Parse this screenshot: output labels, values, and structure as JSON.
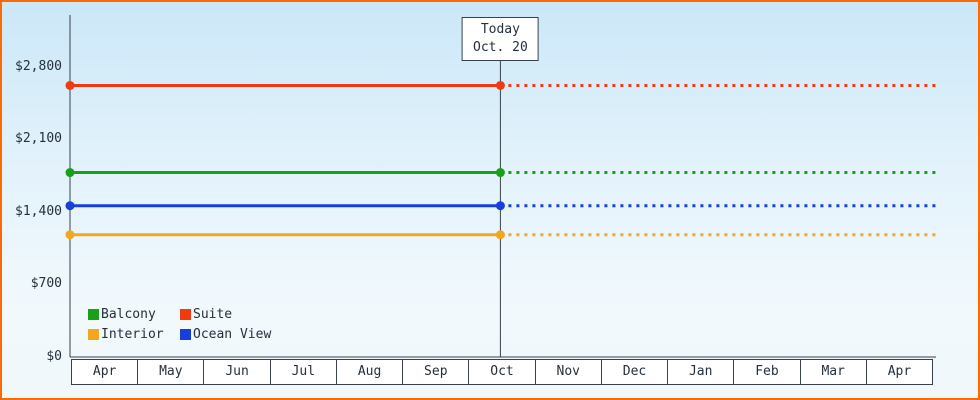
{
  "chart_data": {
    "type": "line",
    "title": "",
    "description": "Cruise cabin price history chart: flat price lines per cabin category, solid before today marker, dotted projection after",
    "y_axis": {
      "ticks": [
        {
          "label": "$0",
          "value": 0
        },
        {
          "label": "$700",
          "value": 700
        },
        {
          "label": "$1,400",
          "value": 1400
        },
        {
          "label": "$2,100",
          "value": 2100
        },
        {
          "label": "$2,800",
          "value": 2800
        }
      ],
      "max": 3300
    },
    "x_axis": {
      "categories": [
        "Apr",
        "May",
        "Jun",
        "Jul",
        "Aug",
        "Sep",
        "Oct",
        "Nov",
        "Dec",
        "Jan",
        "Feb",
        "Mar",
        "Apr"
      ]
    },
    "today_marker": {
      "line1": "Today",
      "line2": "Oct. 20",
      "position_fraction": 0.497
    },
    "series": [
      {
        "name": "Suite",
        "color": "#f23a10",
        "value": 2620
      },
      {
        "name": "Balcony",
        "color": "#18a018",
        "value": 1780
      },
      {
        "name": "Ocean View",
        "color": "#1540dd",
        "value": 1460
      },
      {
        "name": "Interior",
        "color": "#f2a71e",
        "value": 1180
      }
    ],
    "legend": {
      "position": "bottom-left",
      "rows": [
        [
          {
            "name": "Balcony",
            "color": "#18a018"
          },
          {
            "name": "Suite",
            "color": "#f23a10"
          }
        ],
        [
          {
            "name": "Interior",
            "color": "#f2a71e"
          },
          {
            "name": "Ocean View",
            "color": "#1540dd"
          }
        ]
      ]
    },
    "style_notes": {
      "before_today": "solid line with round endpoint markers",
      "after_today": "dotted line"
    }
  },
  "colors": {
    "frame_border": "#ff6a00",
    "axis": "#38414c",
    "text": "#25303c",
    "plot_gradient_top": "#cbe7f8",
    "plot_gradient_bottom": "#f0f8fc"
  }
}
